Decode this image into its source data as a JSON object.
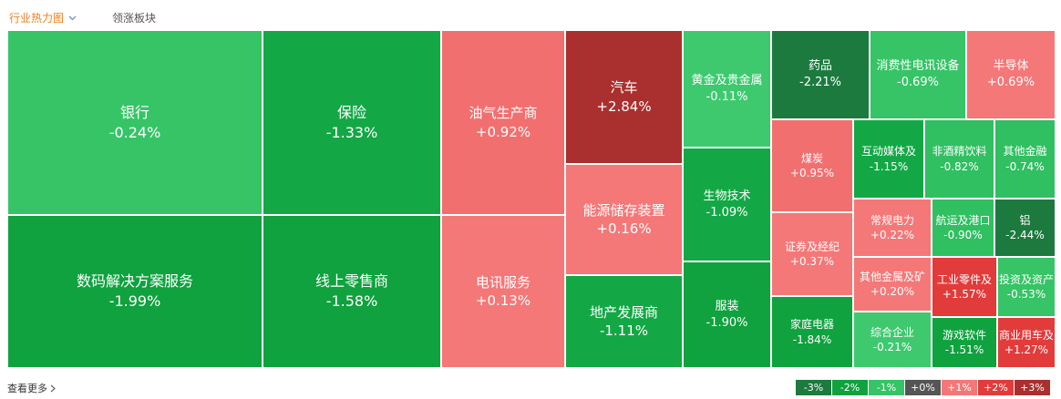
{
  "tabs": [
    "行业热力图",
    "领涨板块"
  ],
  "tiles": [
    {
      "name": "银行",
      "change": "-0.24%",
      "color": "#36c466"
    },
    {
      "name": "数码解决方案服务",
      "change": "-1.99%",
      "color": "#0fa23e"
    },
    {
      "name": "保险",
      "change": "-1.33%",
      "color": "#13a845"
    },
    {
      "name": "线上零售商",
      "change": "-1.58%",
      "color": "#0fa23e"
    },
    {
      "name": "油气生产商",
      "change": "+0.92%",
      "color": "#f26f6f"
    },
    {
      "name": "电讯服务",
      "change": "+0.13%",
      "color": "#f47878"
    },
    {
      "name": "汽车",
      "change": "+2.84%",
      "color": "#a9302e"
    },
    {
      "name": "能源储存装置",
      "change": "+0.16%",
      "color": "#f47878"
    },
    {
      "name": "地产发展商",
      "change": "-1.11%",
      "color": "#13a845"
    },
    {
      "name": "黄金及贵金属",
      "change": "-0.11%",
      "color": "#3ec96f"
    },
    {
      "name": "生物技术",
      "change": "-1.09%",
      "color": "#13a845"
    },
    {
      "name": "服装",
      "change": "-1.90%",
      "color": "#0fa23e"
    },
    {
      "name": "药品",
      "change": "-2.21%",
      "color": "#1c7a3f"
    },
    {
      "name": "消费性电讯设备",
      "change": "-0.69%",
      "color": "#36c466"
    },
    {
      "name": "半导体",
      "change": "+0.69%",
      "color": "#f47878"
    },
    {
      "name": "煤炭",
      "change": "+0.95%",
      "color": "#f26f6f"
    },
    {
      "name": "证券及经纪",
      "change": "+0.37%",
      "color": "#f47878"
    },
    {
      "name": "家庭电器",
      "change": "-1.84%",
      "color": "#0fa23e"
    },
    {
      "name": "互动媒体及",
      "change": "-1.15%",
      "color": "#13a845"
    },
    {
      "name": "非酒精饮料",
      "change": "-0.82%",
      "color": "#30bf61"
    },
    {
      "name": "其他金融",
      "change": "-0.74%",
      "color": "#30bf61"
    },
    {
      "name": "常规电力",
      "change": "+0.22%",
      "color": "#f47878"
    },
    {
      "name": "其他金属及矿",
      "change": "+0.20%",
      "color": "#f47878"
    },
    {
      "name": "综合企业",
      "change": "-0.21%",
      "color": "#3ec96f"
    },
    {
      "name": "航运及港口",
      "change": "-0.90%",
      "color": "#30bf61"
    },
    {
      "name": "铝",
      "change": "-2.44%",
      "color": "#1c7a3f"
    },
    {
      "name": "工业零件及",
      "change": "+1.57%",
      "color": "#e23b3b"
    },
    {
      "name": "投资及资产",
      "change": "-0.53%",
      "color": "#36c466"
    },
    {
      "name": "游戏软件",
      "change": "-1.51%",
      "color": "#0fa23e"
    },
    {
      "name": "商业用车及",
      "change": "+1.27%",
      "color": "#e23b3b"
    }
  ],
  "legend": [
    {
      "label": "-3%",
      "color": "#1c7a3f"
    },
    {
      "label": "-2%",
      "color": "#0fa23e"
    },
    {
      "label": "-1%",
      "color": "#36c466"
    },
    {
      "label": "+0%",
      "color": "#555555"
    },
    {
      "label": "+1%",
      "color": "#f47878"
    },
    {
      "label": "+2%",
      "color": "#e23b3b"
    },
    {
      "label": "+3%",
      "color": "#a9302e"
    }
  ],
  "footer": {
    "more": "查看更多"
  }
}
